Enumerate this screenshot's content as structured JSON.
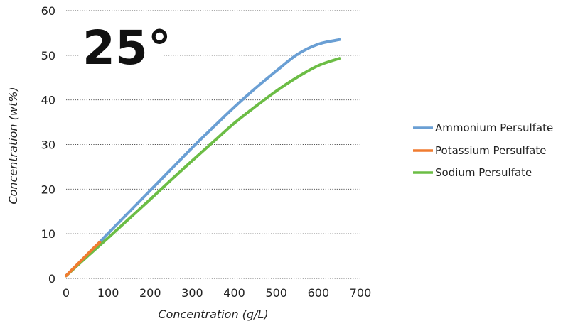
{
  "chart_data": {
    "type": "line",
    "annotation": "25°",
    "xlabel": "Concentration (g/L)",
    "ylabel": "Concentration (wt%)",
    "xlim": [
      0,
      700
    ],
    "ylim": [
      0,
      60
    ],
    "xticks": [
      "0",
      "100",
      "200",
      "300",
      "400",
      "500",
      "600",
      "700"
    ],
    "yticks": [
      "0",
      "10",
      "20",
      "30",
      "40",
      "50",
      "60"
    ],
    "grid": "horizontal dotted",
    "legend_position": "right",
    "series": [
      {
        "name": "Ammonium Persulfate",
        "color": "#6a9fd4",
        "x": [
          0,
          50,
          100,
          150,
          200,
          250,
          300,
          350,
          400,
          450,
          500,
          550,
          600,
          650
        ],
        "y": [
          0.6,
          5.2,
          10.1,
          14.9,
          19.7,
          24.5,
          29.3,
          33.9,
          38.4,
          42.6,
          46.5,
          50.2,
          52.5,
          53.5
        ]
      },
      {
        "name": "Potassium Persulfate",
        "color": "#f07c30",
        "x": [
          0,
          20,
          40,
          60,
          80
        ],
        "y": [
          0.6,
          2.5,
          4.4,
          6.3,
          8.1
        ]
      },
      {
        "name": "Sodium Persulfate",
        "color": "#6cbd45",
        "x": [
          0,
          50,
          100,
          150,
          200,
          250,
          300,
          350,
          400,
          450,
          500,
          550,
          600,
          650
        ],
        "y": [
          0.6,
          4.9,
          9.1,
          13.4,
          17.7,
          22.1,
          26.4,
          30.6,
          34.8,
          38.5,
          42.0,
          45.1,
          47.7,
          49.3
        ]
      }
    ]
  }
}
